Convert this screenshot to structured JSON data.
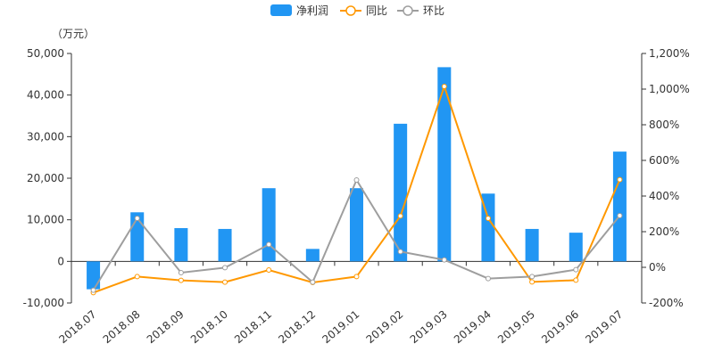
{
  "chart_data": {
    "type": "bar+line",
    "unit_label": "（万元）",
    "categories": [
      "2018.07",
      "2018.08",
      "2018.09",
      "2018.10",
      "2018.11",
      "2018.12",
      "2019.01",
      "2019.02",
      "2019.03",
      "2019.04",
      "2019.05",
      "2019.06",
      "2019.07"
    ],
    "y_left": {
      "range": [
        -10000,
        50000
      ],
      "ticks": [
        -10000,
        0,
        10000,
        20000,
        30000,
        40000,
        50000
      ],
      "tick_labels": [
        "-10,000",
        "0",
        "10,000",
        "20,000",
        "30,000",
        "40,000",
        "50,000"
      ]
    },
    "y_right": {
      "range": [
        -200,
        1200
      ],
      "ticks": [
        -200,
        0,
        200,
        400,
        600,
        800,
        1000,
        1200
      ],
      "tick_labels": [
        "-200%",
        "0%",
        "200%",
        "400%",
        "600%",
        "800%",
        "1,000%",
        "1,200%"
      ]
    },
    "series": [
      {
        "name": "净利润",
        "type": "bar",
        "axis": "left",
        "color": "#2196f3",
        "values": [
          -6700,
          11800,
          8000,
          7800,
          17600,
          3000,
          17600,
          33100,
          46700,
          16300,
          7800,
          6900,
          26400
        ]
      },
      {
        "name": "同比",
        "type": "line",
        "axis": "right",
        "color": "#ff9800",
        "values": [
          -142,
          -52,
          -73,
          -83,
          -15,
          -85,
          -52,
          288,
          1015,
          275,
          -82,
          -72,
          492
        ]
      },
      {
        "name": "环比",
        "type": "line",
        "axis": "right",
        "color": "#9e9e9e",
        "values": [
          -128,
          275,
          -30,
          -2,
          128,
          -83,
          490,
          88,
          42,
          -63,
          -52,
          -13,
          290
        ]
      }
    ],
    "legend_position": "top-center",
    "grid": false
  }
}
